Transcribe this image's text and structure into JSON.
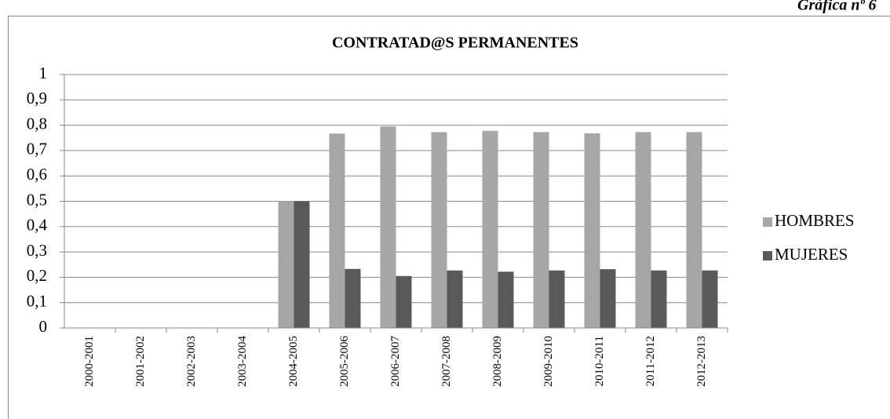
{
  "caption": "Gráfica nº 6",
  "chart_data": {
    "type": "bar",
    "title": "CONTRATAD@S PERMANENTES",
    "categories": [
      "2000-2001",
      "2001-2002",
      "2002-2003",
      "2003-2004",
      "2004-2005",
      "2005-2006",
      "2006-2007",
      "2007-2008",
      "2008-2009",
      "2009-2010",
      "2010-2011",
      "2011-2012",
      "2012-2013"
    ],
    "series": [
      {
        "name": "HOMBRES",
        "color": "#a6a6a6",
        "values": [
          0,
          0,
          0,
          0,
          0.5,
          0.767,
          0.795,
          0.773,
          0.778,
          0.773,
          0.768,
          0.773,
          0.773
        ]
      },
      {
        "name": "MUJERES",
        "color": "#595959",
        "values": [
          0,
          0,
          0,
          0,
          0.5,
          0.233,
          0.205,
          0.227,
          0.222,
          0.227,
          0.232,
          0.227,
          0.227
        ]
      }
    ],
    "ylim": [
      0,
      1
    ],
    "yticks": [
      0,
      {
        "value": 0.1,
        "label": "0,1"
      },
      {
        "value": 0.2,
        "label": "0,2"
      },
      {
        "value": 0.3,
        "label": "0,3"
      },
      {
        "value": 0.4,
        "label": "0,4"
      },
      {
        "value": 0.5,
        "label": "0,5"
      },
      {
        "value": 0.6,
        "label": "0,6"
      },
      {
        "value": 0.7,
        "label": "0,7"
      },
      {
        "value": 0.8,
        "label": "0,8"
      },
      {
        "value": 0.9,
        "label": "0,9"
      },
      1
    ],
    "grid": true,
    "legend": "right"
  }
}
